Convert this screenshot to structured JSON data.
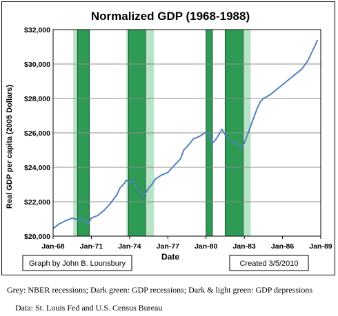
{
  "chart_data": {
    "type": "line",
    "title": "Normalized GDP (1968-1988)",
    "xlabel": "Date",
    "ylabel": "Real GDP per capita (2005 Dollars)",
    "x_ticks": [
      "Jan-68",
      "Jan-71",
      "Jan-74",
      "Jan-77",
      "Jan-80",
      "Jan-83",
      "Jan-86",
      "Jan-89"
    ],
    "y_ticks": [
      "$20,000",
      "$22,000",
      "$24,000",
      "$26,000",
      "$28,000",
      "$30,000",
      "$32,000"
    ],
    "xlim": [
      1968.0,
      1989.0
    ],
    "ylim": [
      20000,
      32000
    ],
    "grid": "horizontal",
    "series": [
      {
        "points": [
          [
            1968.0,
            20450
          ],
          [
            1968.5,
            20720
          ],
          [
            1969.0,
            20900
          ],
          [
            1969.5,
            21050
          ],
          [
            1969.75,
            21000
          ],
          [
            1970.0,
            20920
          ],
          [
            1970.25,
            21000
          ],
          [
            1970.5,
            20850
          ],
          [
            1970.75,
            20700
          ],
          [
            1971.0,
            21050
          ],
          [
            1971.5,
            21200
          ],
          [
            1972.0,
            21500
          ],
          [
            1972.5,
            21900
          ],
          [
            1973.0,
            22400
          ],
          [
            1973.25,
            22800
          ],
          [
            1973.5,
            23000
          ],
          [
            1973.75,
            23250
          ],
          [
            1974.0,
            23150
          ],
          [
            1974.25,
            23200
          ],
          [
            1974.5,
            22900
          ],
          [
            1974.75,
            22700
          ],
          [
            1975.0,
            22350
          ],
          [
            1975.25,
            22500
          ],
          [
            1975.5,
            22800
          ],
          [
            1975.75,
            23000
          ],
          [
            1976.0,
            23300
          ],
          [
            1976.5,
            23550
          ],
          [
            1977.0,
            23700
          ],
          [
            1977.5,
            24100
          ],
          [
            1978.0,
            24500
          ],
          [
            1978.25,
            25000
          ],
          [
            1978.5,
            25200
          ],
          [
            1978.75,
            25400
          ],
          [
            1979.0,
            25650
          ],
          [
            1979.5,
            25800
          ],
          [
            1980.0,
            26050
          ],
          [
            1980.25,
            25900
          ],
          [
            1980.5,
            25400
          ],
          [
            1980.75,
            25600
          ],
          [
            1981.0,
            25900
          ],
          [
            1981.25,
            26200
          ],
          [
            1981.5,
            25900
          ],
          [
            1981.75,
            25700
          ],
          [
            1982.0,
            25500
          ],
          [
            1982.25,
            25400
          ],
          [
            1982.5,
            25350
          ],
          [
            1982.75,
            25200
          ],
          [
            1983.0,
            25400
          ],
          [
            1983.25,
            25900
          ],
          [
            1983.5,
            26400
          ],
          [
            1983.75,
            26900
          ],
          [
            1984.0,
            27400
          ],
          [
            1984.25,
            27800
          ],
          [
            1984.5,
            28000
          ],
          [
            1985.0,
            28200
          ],
          [
            1985.5,
            28500
          ],
          [
            1986.0,
            28800
          ],
          [
            1986.5,
            29100
          ],
          [
            1987.0,
            29400
          ],
          [
            1987.5,
            29700
          ],
          [
            1988.0,
            30200
          ],
          [
            1988.25,
            30600
          ],
          [
            1988.5,
            31000
          ],
          [
            1988.75,
            31400
          ]
        ]
      }
    ],
    "shaded_periods": [
      {
        "start": 1969.583,
        "end": 1970.917,
        "color": "#b7e4c7"
      },
      {
        "start": 1969.917,
        "end": 1970.833,
        "color": "#2e9b55"
      },
      {
        "start": 1973.75,
        "end": 1975.917,
        "color": "#b7e4c7"
      },
      {
        "start": 1973.917,
        "end": 1975.25,
        "color": "#2e9b55"
      },
      {
        "start": 1980.0,
        "end": 1980.5,
        "color": "#b7e4c7"
      },
      {
        "start": 1980.0,
        "end": 1980.5,
        "color": "#2e9b55"
      },
      {
        "start": 1981.5,
        "end": 1983.5,
        "color": "#b7e4c7"
      },
      {
        "start": 1981.5,
        "end": 1982.917,
        "color": "#2e9b55"
      }
    ],
    "line_color": "#4f81bd"
  },
  "credit_left": "Graph by John B. Lounsbury",
  "credit_right": "Created 3/5/2010",
  "caption_line1": "Grey: NBER recessions; Dark green: GDP recessions; Dark & light green: GDP depressions",
  "caption_line2": "Data:  St. Louis Fed and U.S. Census Bureau"
}
